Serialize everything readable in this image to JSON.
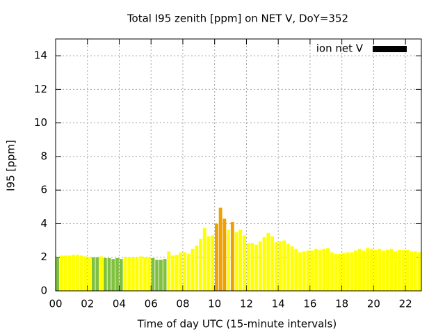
{
  "chart_data": {
    "type": "bar",
    "title": "Total I95 zenith [ppm] on NET V, DoY=352",
    "x_label": "Time of day UTC (15-minute intervals)",
    "y_label": "I95 [ppm]",
    "x": [
      0,
      0.25,
      0.5,
      0.75,
      1,
      1.25,
      1.5,
      1.75,
      2,
      2.25,
      2.5,
      2.75,
      3,
      3.25,
      3.5,
      3.75,
      4,
      4.25,
      4.5,
      4.75,
      5,
      5.25,
      5.5,
      5.75,
      6,
      6.25,
      6.5,
      6.75,
      7,
      7.25,
      7.5,
      7.75,
      8,
      8.25,
      8.5,
      8.75,
      9,
      9.25,
      9.5,
      9.75,
      10,
      10.25,
      10.5,
      10.75,
      11,
      11.25,
      11.5,
      11.75,
      12,
      12.25,
      12.5,
      12.75,
      13,
      13.25,
      13.5,
      13.75,
      14,
      14.25,
      14.5,
      14.75,
      15,
      15.25,
      15.5,
      15.75,
      16,
      16.25,
      16.5,
      16.75,
      17,
      17.25,
      17.5,
      17.75,
      18,
      18.25,
      18.5,
      18.75,
      19,
      19.25,
      19.5,
      19.75,
      20,
      20.25,
      20.5,
      20.75,
      21,
      21.25,
      21.5,
      21.75,
      22,
      22.25,
      22.5,
      22.75
    ],
    "series": [
      {
        "name": "ion net V",
        "legend_color": "#000000",
        "values": [
          2.0,
          2.1,
          2.1,
          2.1,
          2.15,
          2.15,
          2.1,
          2.05,
          2.0,
          2.0,
          2.0,
          2.05,
          1.95,
          1.95,
          1.9,
          1.95,
          1.9,
          2.0,
          2.0,
          2.0,
          2.0,
          2.05,
          2.0,
          2.0,
          1.95,
          1.85,
          1.85,
          1.9,
          2.35,
          2.1,
          2.15,
          2.3,
          2.3,
          2.2,
          2.5,
          2.7,
          3.1,
          3.75,
          3.25,
          3.3,
          4.0,
          4.95,
          4.3,
          3.65,
          4.1,
          3.5,
          3.65,
          3.3,
          2.85,
          2.85,
          2.75,
          2.95,
          3.2,
          3.45,
          3.25,
          2.9,
          2.95,
          3.0,
          2.8,
          2.65,
          2.5,
          2.3,
          2.35,
          2.4,
          2.4,
          2.5,
          2.45,
          2.5,
          2.55,
          2.3,
          2.2,
          2.2,
          2.25,
          2.3,
          2.3,
          2.4,
          2.5,
          2.4,
          2.55,
          2.5,
          2.45,
          2.5,
          2.4,
          2.45,
          2.5,
          2.35,
          2.45,
          2.45,
          2.45,
          2.35,
          2.35,
          2.3
        ],
        "colors": [
          "#80c040",
          "#ffff00",
          "#ffff00",
          "#ffff00",
          "#ffff00",
          "#ffff00",
          "#ffff00",
          "#ffff00",
          "#ffff00",
          "#80c040",
          "#80c040",
          "#ffff00",
          "#80c040",
          "#80c040",
          "#80c040",
          "#80c040",
          "#80c040",
          "#ffff00",
          "#ffff00",
          "#ffff00",
          "#ffff00",
          "#ffff00",
          "#ffff00",
          "#ffff00",
          "#80c040",
          "#80c040",
          "#80c040",
          "#80c040",
          "#ffff00",
          "#ffff00",
          "#ffff00",
          "#ffff00",
          "#ffff00",
          "#ffff00",
          "#ffff00",
          "#ffff00",
          "#ffff00",
          "#ffff00",
          "#ffff00",
          "#ffff00",
          "#f0a000",
          "#f0a000",
          "#f0a000",
          "#ffff00",
          "#f0a000",
          "#ffff00",
          "#ffff00",
          "#ffff00",
          "#ffff00",
          "#ffff00",
          "#ffff00",
          "#ffff00",
          "#ffff00",
          "#ffff00",
          "#ffff00",
          "#ffff00",
          "#ffff00",
          "#ffff00",
          "#ffff00",
          "#ffff00",
          "#ffff00",
          "#ffff00",
          "#ffff00",
          "#ffff00",
          "#ffff00",
          "#ffff00",
          "#ffff00",
          "#ffff00",
          "#ffff00",
          "#ffff00",
          "#ffff00",
          "#ffff00",
          "#ffff00",
          "#ffff00",
          "#ffff00",
          "#ffff00",
          "#ffff00",
          "#ffff00",
          "#ffff00",
          "#ffff00",
          "#ffff00",
          "#ffff00",
          "#ffff00",
          "#ffff00",
          "#ffff00",
          "#ffff00",
          "#ffff00",
          "#ffff00",
          "#ffff00",
          "#ffff00",
          "#ffff00",
          "#ffff00"
        ]
      }
    ],
    "xlim": [
      0,
      23
    ],
    "ylim": [
      0,
      15
    ],
    "xticks": [
      {
        "value": 0,
        "label": "00"
      },
      {
        "value": 2,
        "label": "02"
      },
      {
        "value": 4,
        "label": "04"
      },
      {
        "value": 6,
        "label": "06"
      },
      {
        "value": 8,
        "label": "08"
      },
      {
        "value": 10,
        "label": "10"
      },
      {
        "value": 12,
        "label": "12"
      },
      {
        "value": 14,
        "label": "14"
      },
      {
        "value": 16,
        "label": "16"
      },
      {
        "value": 18,
        "label": "18"
      },
      {
        "value": 20,
        "label": "20"
      },
      {
        "value": 22,
        "label": "22"
      }
    ],
    "yticks": [
      0,
      2,
      4,
      6,
      8,
      10,
      12,
      14
    ],
    "grid": true,
    "legend": "top-right"
  }
}
